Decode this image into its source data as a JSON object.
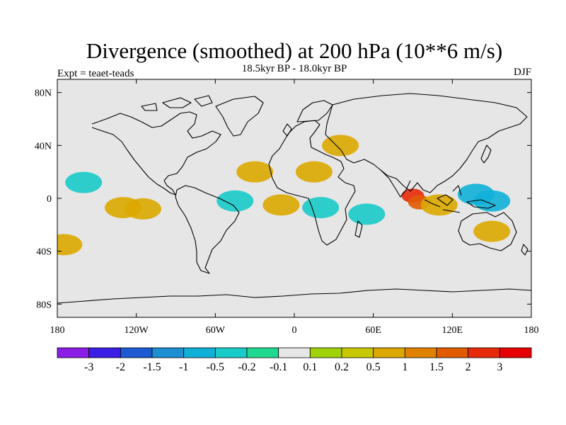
{
  "chart_data": {
    "type": "heatmap",
    "title": "Divergence (smoothed) at 200 hPa (10**6 m/s)",
    "left_label": "Expt = teaet-teads",
    "subtitle": "18.5kyr BP - 18.0kyr BP",
    "right_label": "DJF",
    "xlim": [
      -180,
      180
    ],
    "ylim": [
      -90,
      90
    ],
    "x_ticks": [
      {
        "value": -180,
        "label": "180"
      },
      {
        "value": -120,
        "label": "120W"
      },
      {
        "value": -60,
        "label": "60W"
      },
      {
        "value": 0,
        "label": "0"
      },
      {
        "value": 60,
        "label": "60E"
      },
      {
        "value": 120,
        "label": "120E"
      },
      {
        "value": 180,
        "label": "180"
      }
    ],
    "y_ticks": [
      {
        "value": 80,
        "label": "80N"
      },
      {
        "value": 40,
        "label": "40N"
      },
      {
        "value": 0,
        "label": "0"
      },
      {
        "value": -40,
        "label": "40S"
      },
      {
        "value": -80,
        "label": "80S"
      }
    ],
    "levels": [
      "-3",
      "-2",
      "-1.5",
      "-1",
      "-0.5",
      "-0.2",
      "-0.1",
      "0.1",
      "0.2",
      "0.5",
      "1",
      "1.5",
      "2",
      "3"
    ],
    "colors": [
      "#8a1ee6",
      "#3a1ee6",
      "#1e5ad2",
      "#1e8ed2",
      "#10b0d8",
      "#18cac8",
      "#20d890",
      "#e6e6e6",
      "#a0d20a",
      "#c8c800",
      "#dca800",
      "#e08200",
      "#e05a00",
      "#e62a0a",
      "#e60000"
    ],
    "approx_features": [
      {
        "lon": 90,
        "lat": 2,
        "value": 2.0
      },
      {
        "lon": 95,
        "lat": -3,
        "value": 1.5
      },
      {
        "lon": 138,
        "lat": 3,
        "value": -1.0
      },
      {
        "lon": 150,
        "lat": -2,
        "value": -0.8
      },
      {
        "lon": -160,
        "lat": 12,
        "value": -0.5
      },
      {
        "lon": -45,
        "lat": -2,
        "value": -0.5
      },
      {
        "lon": 20,
        "lat": -7,
        "value": -0.5
      },
      {
        "lon": 55,
        "lat": -12,
        "value": -0.5
      },
      {
        "lon": 110,
        "lat": -5,
        "value": 0.5
      },
      {
        "lon": -130,
        "lat": -7,
        "value": 0.5
      },
      {
        "lon": -115,
        "lat": -8,
        "value": 0.5
      },
      {
        "lon": 15,
        "lat": 20,
        "value": 0.5
      },
      {
        "lon": 35,
        "lat": 40,
        "value": 0.5
      },
      {
        "lon": -30,
        "lat": 20,
        "value": 0.5
      },
      {
        "lon": -10,
        "lat": -5,
        "value": 0.5
      },
      {
        "lon": 150,
        "lat": -25,
        "value": 0.5
      },
      {
        "lon": -175,
        "lat": -35,
        "value": 0.5
      }
    ]
  }
}
